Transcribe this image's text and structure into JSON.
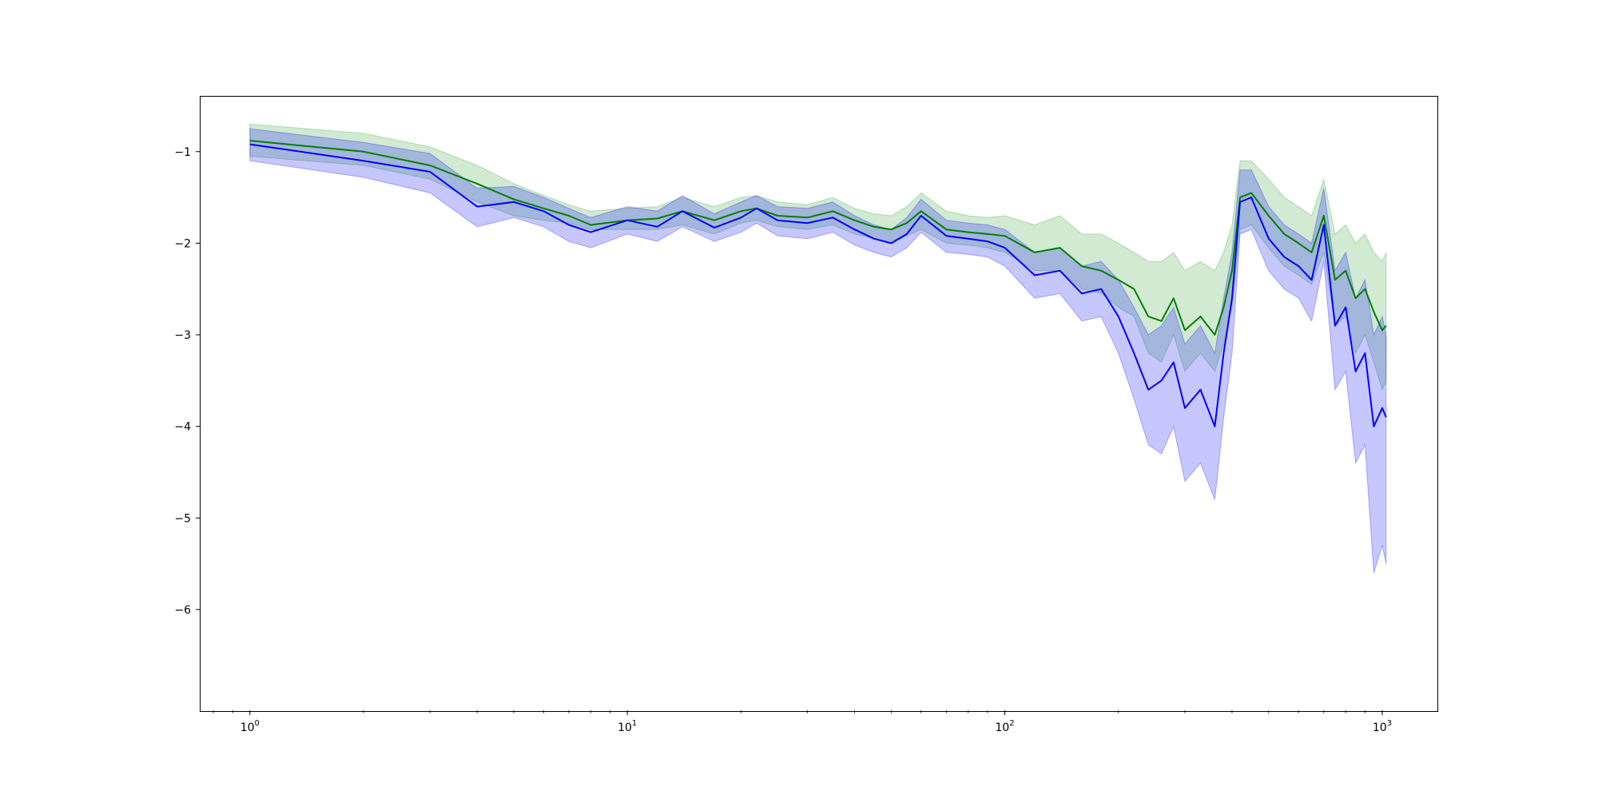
{
  "chart_data": {
    "type": "line",
    "title": "",
    "xlabel": "",
    "ylabel": "",
    "x_scale": "log",
    "xlim": [
      0.74,
      1400
    ],
    "ylim": [
      -7.1,
      -0.4
    ],
    "grid": false,
    "legend": "none",
    "x_ticks": [
      {
        "value": 1,
        "base": "10",
        "exp": "0"
      },
      {
        "value": 10,
        "base": "10",
        "exp": "1"
      },
      {
        "value": 100,
        "base": "10",
        "exp": "2"
      },
      {
        "value": 1000,
        "base": "10",
        "exp": "3"
      }
    ],
    "y_ticks": [
      {
        "value": -1,
        "label": "−1"
      },
      {
        "value": -2,
        "label": "−2"
      },
      {
        "value": -3,
        "label": "−3"
      },
      {
        "value": -4,
        "label": "−4"
      },
      {
        "value": -5,
        "label": "−5"
      },
      {
        "value": -6,
        "label": "−6"
      }
    ],
    "series": [
      {
        "color": "#008000",
        "band_color": "#2ca02c",
        "points": [
          [
            1,
            -0.88,
            -0.7,
            -1.05
          ],
          [
            2,
            -1.0,
            -0.8,
            -1.15
          ],
          [
            3,
            -1.15,
            -0.95,
            -1.3
          ],
          [
            4,
            -1.35,
            -1.15,
            -1.55
          ],
          [
            5,
            -1.52,
            -1.35,
            -1.7
          ],
          [
            6,
            -1.62,
            -1.48,
            -1.75
          ],
          [
            7,
            -1.7,
            -1.58,
            -1.78
          ],
          [
            8,
            -1.8,
            -1.65,
            -1.85
          ],
          [
            10,
            -1.75,
            -1.62,
            -1.85
          ],
          [
            12,
            -1.73,
            -1.6,
            -1.85
          ],
          [
            14,
            -1.65,
            -1.5,
            -1.8
          ],
          [
            17,
            -1.75,
            -1.6,
            -1.9
          ],
          [
            20,
            -1.65,
            -1.5,
            -1.78
          ],
          [
            22,
            -1.62,
            -1.48,
            -1.75
          ],
          [
            25,
            -1.7,
            -1.55,
            -1.82
          ],
          [
            30,
            -1.72,
            -1.58,
            -1.85
          ],
          [
            35,
            -1.65,
            -1.5,
            -1.8
          ],
          [
            40,
            -1.75,
            -1.62,
            -1.9
          ],
          [
            45,
            -1.82,
            -1.68,
            -1.95
          ],
          [
            50,
            -1.85,
            -1.7,
            -2.0
          ],
          [
            55,
            -1.78,
            -1.6,
            -1.92
          ],
          [
            60,
            -1.65,
            -1.45,
            -1.85
          ],
          [
            70,
            -1.85,
            -1.65,
            -2.0
          ],
          [
            80,
            -1.88,
            -1.7,
            -2.02
          ],
          [
            90,
            -1.9,
            -1.72,
            -2.05
          ],
          [
            100,
            -1.92,
            -1.7,
            -2.1
          ],
          [
            120,
            -2.1,
            -1.8,
            -2.3
          ],
          [
            140,
            -2.05,
            -1.7,
            -2.3
          ],
          [
            160,
            -2.25,
            -1.9,
            -2.5
          ],
          [
            180,
            -2.3,
            -1.9,
            -2.55
          ],
          [
            200,
            -2.4,
            -2.0,
            -2.7
          ],
          [
            220,
            -2.5,
            -2.1,
            -2.8
          ],
          [
            240,
            -2.8,
            -2.2,
            -3.2
          ],
          [
            260,
            -2.85,
            -2.2,
            -3.3
          ],
          [
            280,
            -2.6,
            -2.1,
            -3.0
          ],
          [
            300,
            -2.95,
            -2.3,
            -3.4
          ],
          [
            330,
            -2.8,
            -2.2,
            -3.2
          ],
          [
            360,
            -3.0,
            -2.3,
            -3.4
          ],
          [
            380,
            -2.7,
            -2.1,
            -3.1
          ],
          [
            400,
            -2.3,
            -1.8,
            -2.7
          ],
          [
            420,
            -1.5,
            -1.1,
            -1.85
          ],
          [
            450,
            -1.45,
            -1.1,
            -1.8
          ],
          [
            500,
            -1.7,
            -1.3,
            -2.05
          ],
          [
            550,
            -1.9,
            -1.5,
            -2.25
          ],
          [
            600,
            -2.0,
            -1.6,
            -2.35
          ],
          [
            650,
            -2.1,
            -1.7,
            -2.45
          ],
          [
            700,
            -1.7,
            -1.3,
            -2.1
          ],
          [
            750,
            -2.4,
            -1.9,
            -2.9
          ],
          [
            800,
            -2.3,
            -1.8,
            -2.8
          ],
          [
            850,
            -2.6,
            -2.0,
            -3.2
          ],
          [
            900,
            -2.5,
            -1.9,
            -3.0
          ],
          [
            950,
            -2.75,
            -2.1,
            -3.3
          ],
          [
            1000,
            -2.95,
            -2.2,
            -3.6
          ],
          [
            1024,
            -2.9,
            -2.1,
            -3.5
          ]
        ]
      },
      {
        "color": "#0000ff",
        "band_color": "#0000ff",
        "points": [
          [
            1,
            -0.92,
            -0.75,
            -1.1
          ],
          [
            2,
            -1.1,
            -0.9,
            -1.28
          ],
          [
            3,
            -1.22,
            -1.02,
            -1.45
          ],
          [
            4,
            -1.6,
            -1.4,
            -1.82
          ],
          [
            5,
            -1.55,
            -1.38,
            -1.72
          ],
          [
            6,
            -1.65,
            -1.5,
            -1.82
          ],
          [
            7,
            -1.8,
            -1.62,
            -1.98
          ],
          [
            8,
            -1.88,
            -1.72,
            -2.05
          ],
          [
            10,
            -1.75,
            -1.6,
            -1.9
          ],
          [
            12,
            -1.82,
            -1.65,
            -1.98
          ],
          [
            14,
            -1.65,
            -1.48,
            -1.82
          ],
          [
            17,
            -1.83,
            -1.68,
            -1.98
          ],
          [
            20,
            -1.72,
            -1.55,
            -1.88
          ],
          [
            22,
            -1.62,
            -1.48,
            -1.78
          ],
          [
            25,
            -1.75,
            -1.6,
            -1.92
          ],
          [
            30,
            -1.78,
            -1.62,
            -1.95
          ],
          [
            35,
            -1.72,
            -1.55,
            -1.88
          ],
          [
            40,
            -1.85,
            -1.7,
            -2.02
          ],
          [
            45,
            -1.95,
            -1.8,
            -2.1
          ],
          [
            50,
            -2.0,
            -1.85,
            -2.15
          ],
          [
            55,
            -1.9,
            -1.72,
            -2.05
          ],
          [
            60,
            -1.7,
            -1.52,
            -1.88
          ],
          [
            70,
            -1.92,
            -1.75,
            -2.1
          ],
          [
            80,
            -1.95,
            -1.78,
            -2.12
          ],
          [
            90,
            -1.98,
            -1.8,
            -2.15
          ],
          [
            100,
            -2.05,
            -1.85,
            -2.25
          ],
          [
            120,
            -2.35,
            -2.1,
            -2.6
          ],
          [
            140,
            -2.3,
            -2.05,
            -2.55
          ],
          [
            160,
            -2.55,
            -2.25,
            -2.85
          ],
          [
            180,
            -2.5,
            -2.2,
            -2.8
          ],
          [
            200,
            -2.8,
            -2.4,
            -3.2
          ],
          [
            220,
            -3.2,
            -2.7,
            -3.7
          ],
          [
            240,
            -3.6,
            -3.0,
            -4.2
          ],
          [
            260,
            -3.5,
            -2.9,
            -4.3
          ],
          [
            280,
            -3.3,
            -2.7,
            -4.0
          ],
          [
            300,
            -3.8,
            -3.1,
            -4.6
          ],
          [
            330,
            -3.6,
            -2.9,
            -4.4
          ],
          [
            360,
            -4.0,
            -3.2,
            -4.8
          ],
          [
            380,
            -3.2,
            -2.6,
            -3.9
          ],
          [
            400,
            -2.6,
            -2.1,
            -3.2
          ],
          [
            420,
            -1.55,
            -1.2,
            -1.9
          ],
          [
            450,
            -1.5,
            -1.2,
            -1.85
          ],
          [
            500,
            -1.95,
            -1.6,
            -2.3
          ],
          [
            550,
            -2.15,
            -1.8,
            -2.5
          ],
          [
            600,
            -2.25,
            -1.9,
            -2.6
          ],
          [
            650,
            -2.4,
            -2.0,
            -2.85
          ],
          [
            700,
            -1.8,
            -1.4,
            -2.2
          ],
          [
            750,
            -2.9,
            -2.3,
            -3.6
          ],
          [
            800,
            -2.7,
            -2.1,
            -3.4
          ],
          [
            850,
            -3.4,
            -2.6,
            -4.4
          ],
          [
            900,
            -3.2,
            -2.4,
            -4.2
          ],
          [
            950,
            -4.0,
            -3.0,
            -5.6
          ],
          [
            1000,
            -3.8,
            -2.8,
            -5.3
          ],
          [
            1024,
            -3.9,
            -3.0,
            -5.5
          ]
        ]
      }
    ]
  }
}
